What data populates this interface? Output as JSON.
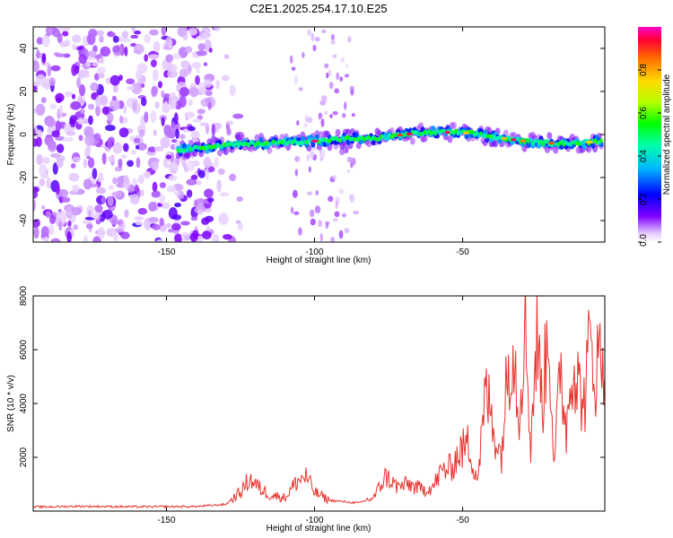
{
  "figure_title": "C2E1.2025.254.17.10.E25",
  "chart_data": [
    {
      "type": "heatmap",
      "title": "C2E1.2025.254.17.10.E25",
      "xlabel": "Height of straight line (km)",
      "ylabel": "Frequency (Hz)",
      "xlim": [
        -195,
        -2
      ],
      "ylim": [
        -50,
        50
      ],
      "xticks": [
        -150,
        -100,
        -50
      ],
      "yticks": [
        -40,
        -20,
        0,
        20,
        40
      ],
      "colorbar": {
        "label": "Normalized spectral amplitude",
        "range": [
          0,
          1
        ],
        "ticks": [
          0.0,
          0.2,
          0.4,
          0.6,
          0.8
        ],
        "tick_labels": [
          "0.0",
          "0.2",
          "0.4",
          "0.6",
          "0.8"
        ]
      },
      "ridge": {
        "description": "Dominant frequency track",
        "x": [
          -145,
          -130,
          -115,
          -100,
          -90,
          -80,
          -70,
          -60,
          -50,
          -40,
          -30,
          -20,
          -10,
          -3
        ],
        "y": [
          -7,
          -5,
          -4,
          -3,
          -2,
          -2,
          0,
          1,
          1,
          -1,
          -3,
          -4,
          -4,
          -3
        ]
      }
    },
    {
      "type": "line",
      "xlabel": "Height of straight line (km)",
      "ylabel": "SNR (10 * v/v)",
      "xlim": [
        -195,
        -2
      ],
      "ylim": [
        0,
        8000
      ],
      "xticks": [
        -150,
        -100,
        -50
      ],
      "yticks": [
        2000,
        4000,
        6000,
        8000
      ],
      "series": [
        {
          "name": "SNR",
          "color": "#e8332e",
          "x": [
            -195,
            -180,
            -160,
            -140,
            -130,
            -125,
            -122,
            -118,
            -115,
            -110,
            -106,
            -103,
            -100,
            -95,
            -90,
            -85,
            -80,
            -76,
            -72,
            -68,
            -64,
            -60,
            -57,
            -54,
            -51,
            -48,
            -45,
            -42,
            -40,
            -37,
            -35,
            -33,
            -31,
            -29,
            -27,
            -25,
            -23,
            -21,
            -19,
            -17,
            -15,
            -13,
            -11,
            -9,
            -7,
            -5,
            -3
          ],
          "y": [
            150,
            180,
            160,
            170,
            250,
            700,
            1200,
            800,
            600,
            500,
            1100,
            1300,
            700,
            400,
            350,
            300,
            500,
            1300,
            900,
            1000,
            800,
            900,
            1500,
            1600,
            2200,
            2500,
            1200,
            4500,
            3300,
            2000,
            5000,
            6600,
            3500,
            7200,
            2500,
            6500,
            4000,
            7000,
            1500,
            5500,
            3000,
            5800,
            4700,
            4000,
            6300,
            5200,
            6000
          ]
        }
      ]
    }
  ]
}
